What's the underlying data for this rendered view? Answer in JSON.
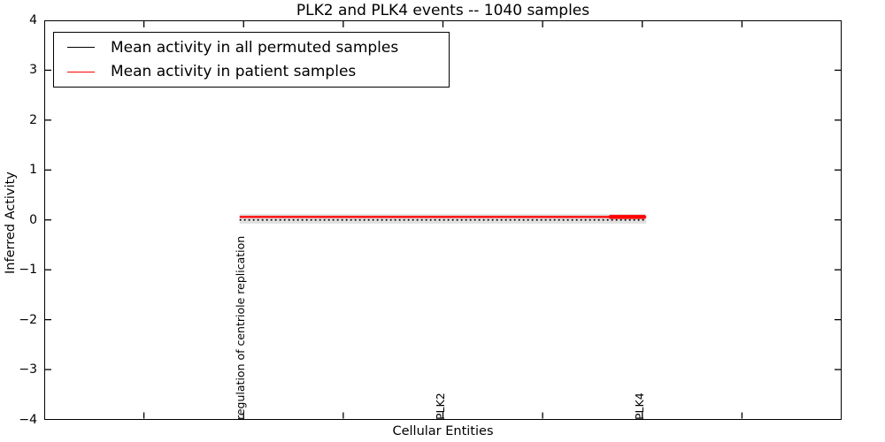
{
  "figure": {
    "title": "PLK2 and PLK4 events -- 1040 samples"
  },
  "legend": {
    "items": [
      {
        "label": "Mean activity in all permuted samples",
        "color": "#000000"
      },
      {
        "label": "Mean activity in patient samples",
        "color": "#ff0000"
      }
    ]
  },
  "y_axis": {
    "label": "Inferred Activity",
    "tick_labels": [
      "4",
      "3",
      "2",
      "1",
      "0",
      "−1",
      "−2",
      "−3",
      "−4"
    ],
    "tick_values": [
      4,
      3,
      2,
      1,
      0,
      -1,
      -2,
      -3,
      -4
    ]
  },
  "x_axis": {
    "label": "Cellular Entities",
    "tick_positions": [
      1,
      2,
      3,
      4,
      5,
      6,
      7
    ],
    "labeled_ticks": [
      {
        "x": 2,
        "label": "regulation of centriole replication"
      },
      {
        "x": 4,
        "label": "PLK2"
      },
      {
        "x": 6,
        "label": "PLK4"
      }
    ]
  },
  "chart_data": {
    "type": "line",
    "title": "PLK2 and PLK4 events -- 1040 samples",
    "xlabel": "Cellular Entities",
    "ylabel": "Inferred Activity",
    "xlim": [
      0,
      8
    ],
    "ylim": [
      -4,
      4
    ],
    "grid": false,
    "legend_position": "upper left",
    "categories": [
      "regulation of centriole replication",
      "PLK2",
      "PLK4"
    ],
    "category_x": [
      2,
      4,
      6
    ],
    "series": [
      {
        "name": "Mean activity in all permuted samples",
        "color": "#000000",
        "linestyle": "dotted",
        "linewidth": 1.7,
        "x": [
          1.96,
          4.0,
          6.04
        ],
        "values": [
          0.0,
          0.0,
          0.0
        ]
      },
      {
        "name": "Mean activity in patient samples",
        "color": "#ff0000",
        "linestyle": "solid",
        "linewidth": 2.2,
        "x": [
          1.96,
          4.0,
          6.04
        ],
        "values": [
          0.06,
          0.06,
          0.06
        ],
        "end_emphasis": {
          "x": [
            5.67,
            6.03
          ],
          "linewidth": 4.5
        }
      }
    ],
    "band": {
      "x": [
        1.96,
        6.04
      ],
      "top": 0.115,
      "bottom": -0.075,
      "color": "#e1e1e1"
    }
  }
}
